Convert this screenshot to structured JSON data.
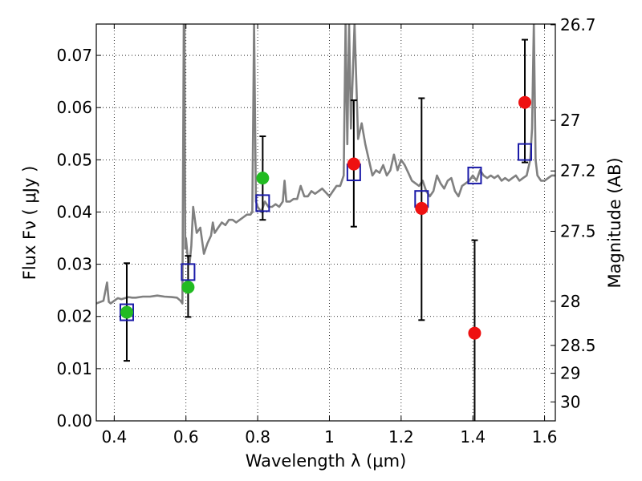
{
  "chart_data": {
    "type": "scatter",
    "xlabel": "Wavelength  λ (μm)",
    "ylabel_left": "Flux  Fν  ( μJy )",
    "ylabel_right": "Magnitude (AB)",
    "xlim": [
      0.35,
      1.63
    ],
    "ylim": [
      0.0,
      0.076
    ],
    "x_ticks": [
      0.4,
      0.6,
      0.8,
      1.0,
      1.2,
      1.4,
      1.6
    ],
    "x_tick_labels": [
      "0.4",
      "0.6",
      "0.8",
      "1",
      "1.2",
      "1.4",
      "1.6"
    ],
    "y_ticks": [
      0.0,
      0.01,
      0.02,
      0.03,
      0.04,
      0.05,
      0.06,
      0.07
    ],
    "y_tick_labels": [
      "0.00",
      "0.01",
      "0.02",
      "0.03",
      "0.04",
      "0.05",
      "0.06",
      "0.07"
    ],
    "mag_ticks": [
      26.7,
      27,
      27.2,
      27.5,
      28,
      28.5,
      29,
      30
    ],
    "mag_tick_labels": [
      "26.7",
      "27",
      "27.2",
      "27.5",
      "28",
      "28.5",
      "29",
      "30"
    ],
    "grid": true,
    "colors": {
      "spectrum": "#808080",
      "green": "#22bb22",
      "red": "#ee1111",
      "model": "#1a1aa8",
      "errorbar": "#000000"
    },
    "observed_points": [
      {
        "x": 0.435,
        "y": 0.0208,
        "yerr_low": 0.0115,
        "yerr_high": 0.0302,
        "color": "green"
      },
      {
        "x": 0.606,
        "y": 0.0256,
        "yerr_low": 0.0199,
        "yerr_high": 0.0316,
        "color": "green"
      },
      {
        "x": 0.814,
        "y": 0.0465,
        "yerr_low": 0.0385,
        "yerr_high": 0.0545,
        "color": "green"
      },
      {
        "x": 1.068,
        "y": 0.0492,
        "yerr_low": 0.0372,
        "yerr_high": 0.0614,
        "color": "red"
      },
      {
        "x": 1.257,
        "y": 0.0407,
        "yerr_low": 0.0193,
        "yerr_high": 0.0618,
        "color": "red"
      },
      {
        "x": 1.405,
        "y": 0.0168,
        "yerr_low": -0.001,
        "yerr_high": 0.0346,
        "color": "red"
      },
      {
        "x": 1.545,
        "y": 0.061,
        "yerr_low": 0.0495,
        "yerr_high": 0.073,
        "color": "red"
      }
    ],
    "model_points": [
      {
        "x": 0.435,
        "y": 0.0208
      },
      {
        "x": 0.606,
        "y": 0.0285
      },
      {
        "x": 0.814,
        "y": 0.0417
      },
      {
        "x": 1.068,
        "y": 0.0476
      },
      {
        "x": 1.257,
        "y": 0.0425
      },
      {
        "x": 1.405,
        "y": 0.047
      },
      {
        "x": 1.545,
        "y": 0.0515
      }
    ],
    "spectrum": {
      "x": [
        0.35,
        0.37,
        0.38,
        0.385,
        0.39,
        0.4,
        0.41,
        0.42,
        0.43,
        0.44,
        0.45,
        0.46,
        0.48,
        0.5,
        0.52,
        0.54,
        0.56,
        0.575,
        0.585,
        0.59,
        0.594,
        0.596,
        0.598,
        0.6,
        0.604,
        0.61,
        0.615,
        0.62,
        0.63,
        0.64,
        0.65,
        0.66,
        0.67,
        0.675,
        0.68,
        0.69,
        0.7,
        0.71,
        0.72,
        0.73,
        0.74,
        0.75,
        0.76,
        0.77,
        0.78,
        0.785,
        0.79,
        0.795,
        0.8,
        0.81,
        0.82,
        0.83,
        0.84,
        0.85,
        0.86,
        0.87,
        0.875,
        0.88,
        0.89,
        0.9,
        0.91,
        0.92,
        0.93,
        0.94,
        0.95,
        0.96,
        0.97,
        0.98,
        1.0,
        1.01,
        1.02,
        1.03,
        1.04,
        1.045,
        1.05,
        1.055,
        1.06,
        1.07,
        1.08,
        1.09,
        1.1,
        1.12,
        1.13,
        1.14,
        1.15,
        1.16,
        1.17,
        1.18,
        1.19,
        1.2,
        1.21,
        1.22,
        1.23,
        1.24,
        1.25,
        1.26,
        1.27,
        1.28,
        1.29,
        1.3,
        1.31,
        1.32,
        1.33,
        1.34,
        1.35,
        1.36,
        1.37,
        1.38,
        1.39,
        1.4,
        1.41,
        1.42,
        1.43,
        1.44,
        1.45,
        1.46,
        1.47,
        1.48,
        1.49,
        1.5,
        1.51,
        1.52,
        1.53,
        1.54,
        1.55,
        1.56,
        1.565,
        1.57,
        1.575,
        1.58,
        1.59,
        1.6,
        1.61,
        1.62,
        1.63
      ],
      "y": [
        0.0225,
        0.023,
        0.0265,
        0.0228,
        0.0225,
        0.023,
        0.0235,
        0.0233,
        0.0235,
        0.0237,
        0.0236,
        0.0236,
        0.0238,
        0.0238,
        0.024,
        0.0238,
        0.0237,
        0.0236,
        0.023,
        0.0225,
        0.076,
        0.076,
        0.033,
        0.035,
        0.032,
        0.03,
        0.0335,
        0.041,
        0.036,
        0.037,
        0.032,
        0.034,
        0.0355,
        0.038,
        0.036,
        0.037,
        0.038,
        0.0375,
        0.0385,
        0.0385,
        0.038,
        0.0385,
        0.039,
        0.0395,
        0.0395,
        0.04,
        0.076,
        0.042,
        0.041,
        0.04,
        0.042,
        0.041,
        0.041,
        0.0415,
        0.041,
        0.042,
        0.046,
        0.042,
        0.042,
        0.0425,
        0.0425,
        0.045,
        0.043,
        0.043,
        0.044,
        0.0435,
        0.044,
        0.0445,
        0.043,
        0.044,
        0.045,
        0.045,
        0.047,
        0.076,
        0.053,
        0.076,
        0.056,
        0.076,
        0.054,
        0.057,
        0.053,
        0.047,
        0.048,
        0.0475,
        0.049,
        0.047,
        0.048,
        0.051,
        0.048,
        0.05,
        0.049,
        0.0475,
        0.046,
        0.0455,
        0.045,
        0.046,
        0.044,
        0.043,
        0.044,
        0.047,
        0.0455,
        0.0445,
        0.046,
        0.0465,
        0.044,
        0.043,
        0.045,
        0.0455,
        0.046,
        0.047,
        0.046,
        0.048,
        0.047,
        0.0465,
        0.047,
        0.0465,
        0.047,
        0.046,
        0.0465,
        0.046,
        0.0465,
        0.047,
        0.046,
        0.0465,
        0.047,
        0.05,
        0.056,
        0.076,
        0.05,
        0.047,
        0.046,
        0.046,
        0.0465,
        0.047,
        0.047
      ]
    }
  }
}
